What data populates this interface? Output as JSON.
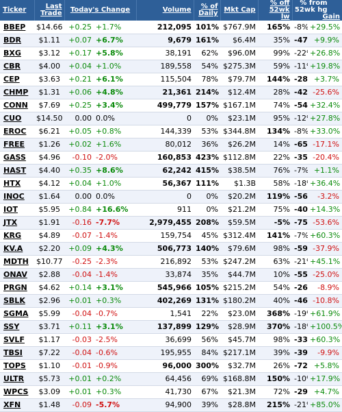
{
  "colors": {
    "positive": "#0a8a0a",
    "negative": "#d01010",
    "header_bg": "#2e5f98",
    "header_text": "#ffffff"
  },
  "headers": {
    "ticker": "Ticker",
    "last_trade": "Last Trade",
    "todays_change": "Today's Change",
    "volume": "Volume",
    "pct_daily": "% of Daily",
    "mkt_cap": "Mkt Cap",
    "pct_off_52wk_low": "% off 52wk lw",
    "pct_from_52wk_high": "% from 52wk hg",
    "gain": "Gain"
  },
  "rows": [
    {
      "ticker": "BBEP",
      "last": "$14.66",
      "chg": "+0.25",
      "pct": "+1.7%",
      "volume": "212,095",
      "daily": "101%",
      "cap": "$767.9M",
      "off": "165%",
      "from": "-8%",
      "gain": "+29.5%"
    },
    {
      "ticker": "BDR",
      "last": "$1.11",
      "chg": "+0.07",
      "pct": "+6.7%",
      "volume": "9,679",
      "daily": "161%",
      "cap": "$6.4M",
      "off": "35%",
      "from": "-47%",
      "gain": "+9.9%"
    },
    {
      "ticker": "BXG",
      "last": "$3.12",
      "chg": "+0.17",
      "pct": "+5.8%",
      "volume": "38,191",
      "daily": "62%",
      "cap": "$96.0M",
      "off": "99%",
      "from": "-22%",
      "gain": "+26.8%"
    },
    {
      "ticker": "CBR",
      "last": "$4.00",
      "chg": "+0.04",
      "pct": "+1.0%",
      "volume": "189,558",
      "daily": "54%",
      "cap": "$275.3M",
      "off": "59%",
      "from": "-11%",
      "gain": "+19.8%"
    },
    {
      "ticker": "CEP",
      "last": "$3.63",
      "chg": "+0.21",
      "pct": "+6.1%",
      "volume": "115,504",
      "daily": "78%",
      "cap": "$79.7M",
      "off": "144%",
      "from": "-28%",
      "gain": "+3.7%"
    },
    {
      "ticker": "CHMP",
      "last": "$1.31",
      "chg": "+0.06",
      "pct": "+4.8%",
      "volume": "21,361",
      "daily": "214%",
      "cap": "$12.4M",
      "off": "28%",
      "from": "-42%",
      "gain": "-25.6%"
    },
    {
      "ticker": "CONN",
      "last": "$7.69",
      "chg": "+0.25",
      "pct": "+3.4%",
      "volume": "499,779",
      "daily": "157%",
      "cap": "$167.1M",
      "off": "74%",
      "from": "-54%",
      "gain": "+32.4%"
    },
    {
      "ticker": "CUO",
      "last": "$14.50",
      "chg": "0.00",
      "pct": "0.0%",
      "volume": "0",
      "daily": "0%",
      "cap": "$23.1M",
      "off": "95%",
      "from": "-12%",
      "gain": "+27.8%"
    },
    {
      "ticker": "EROC",
      "last": "$6.21",
      "chg": "+0.05",
      "pct": "+0.8%",
      "volume": "144,339",
      "daily": "53%",
      "cap": "$344.8M",
      "off": "134%",
      "from": "-8%",
      "gain": "+33.0%"
    },
    {
      "ticker": "FREE",
      "last": "$1.26",
      "chg": "+0.02",
      "pct": "+1.6%",
      "volume": "80,012",
      "daily": "36%",
      "cap": "$26.2M",
      "off": "14%",
      "from": "-65%",
      "gain": "-17.1%"
    },
    {
      "ticker": "GASS",
      "last": "$4.96",
      "chg": "-0.10",
      "pct": "-2.0%",
      "volume": "160,853",
      "daily": "423%",
      "cap": "$112.8M",
      "off": "22%",
      "from": "-35%",
      "gain": "-20.4%"
    },
    {
      "ticker": "HAST",
      "last": "$4.40",
      "chg": "+0.35",
      "pct": "+8.6%",
      "volume": "62,242",
      "daily": "415%",
      "cap": "$38.5M",
      "off": "76%",
      "from": "-7%",
      "gain": "+1.1%"
    },
    {
      "ticker": "HTX",
      "last": "$4.12",
      "chg": "+0.04",
      "pct": "+1.0%",
      "volume": "56,367",
      "daily": "111%",
      "cap": "$1.3B",
      "off": "58%",
      "from": "-18%",
      "gain": "+36.4%"
    },
    {
      "ticker": "INOC",
      "last": "$1.64",
      "chg": "0.00",
      "pct": "0.0%",
      "volume": "0",
      "daily": "0%",
      "cap": "$20.2M",
      "off": "119%",
      "from": "-56%",
      "gain": "-3.2%"
    },
    {
      "ticker": "IOT",
      "last": "$5.95",
      "chg": "+0.84",
      "pct": "+16.6%",
      "volume": "911",
      "daily": "0%",
      "cap": "$21.2M",
      "off": "75%",
      "from": "-40%",
      "gain": "+14.3%"
    },
    {
      "ticker": "JTX",
      "last": "$1.91",
      "chg": "-0.16",
      "pct": "-7.7%",
      "volume": "2,979,455",
      "daily": "208%",
      "cap": "$59.5M",
      "off": "-5%",
      "from": "-75%",
      "gain": "-53.6%"
    },
    {
      "ticker": "KRG",
      "last": "$4.89",
      "chg": "-0.07",
      "pct": "-1.4%",
      "volume": "159,754",
      "daily": "45%",
      "cap": "$312.4M",
      "off": "141%",
      "from": "-7%",
      "gain": "+60.3%"
    },
    {
      "ticker": "KV.A",
      "last": "$2.20",
      "chg": "+0.09",
      "pct": "+4.3%",
      "volume": "506,773",
      "daily": "140%",
      "cap": "$79.6M",
      "off": "98%",
      "from": "-59%",
      "gain": "-37.9%"
    },
    {
      "ticker": "MDTH",
      "last": "$10.77",
      "chg": "-0.25",
      "pct": "-2.3%",
      "volume": "216,892",
      "daily": "53%",
      "cap": "$247.2M",
      "off": "63%",
      "from": "-21%",
      "gain": "+45.1%"
    },
    {
      "ticker": "ONAV",
      "last": "$2.88",
      "chg": "-0.04",
      "pct": "-1.4%",
      "volume": "33,874",
      "daily": "35%",
      "cap": "$44.7M",
      "off": "10%",
      "from": "-55%",
      "gain": "-25.0%"
    },
    {
      "ticker": "PRGN",
      "last": "$4.62",
      "chg": "+0.14",
      "pct": "+3.1%",
      "volume": "545,966",
      "daily": "105%",
      "cap": "$215.2M",
      "off": "54%",
      "from": "-26%",
      "gain": "-8.9%"
    },
    {
      "ticker": "SBLK",
      "last": "$2.96",
      "chg": "+0.01",
      "pct": "+0.3%",
      "volume": "402,269",
      "daily": "131%",
      "cap": "$180.2M",
      "off": "40%",
      "from": "-46%",
      "gain": "-10.8%"
    },
    {
      "ticker": "SGMA",
      "last": "$5.99",
      "chg": "-0.04",
      "pct": "-0.7%",
      "volume": "1,541",
      "daily": "22%",
      "cap": "$23.0M",
      "off": "368%",
      "from": "-19%",
      "gain": "+61.9%"
    },
    {
      "ticker": "SSY",
      "last": "$3.71",
      "chg": "+0.11",
      "pct": "+3.1%",
      "volume": "137,899",
      "daily": "129%",
      "cap": "$28.9M",
      "off": "370%",
      "from": "-18%",
      "gain": "+100.5%"
    },
    {
      "ticker": "SVLF",
      "last": "$1.17",
      "chg": "-0.03",
      "pct": "-2.5%",
      "volume": "36,699",
      "daily": "56%",
      "cap": "$45.7M",
      "off": "98%",
      "from": "-33%",
      "gain": "+60.3%"
    },
    {
      "ticker": "TBSI",
      "last": "$7.22",
      "chg": "-0.04",
      "pct": "-0.6%",
      "volume": "195,955",
      "daily": "84%",
      "cap": "$217.1M",
      "off": "39%",
      "from": "-39%",
      "gain": "-9.9%"
    },
    {
      "ticker": "TOPS",
      "last": "$1.10",
      "chg": "-0.01",
      "pct": "-0.9%",
      "volume": "96,000",
      "daily": "300%",
      "cap": "$32.7M",
      "off": "26%",
      "from": "-72%",
      "gain": "+5.8%"
    },
    {
      "ticker": "ULTR",
      "last": "$5.73",
      "chg": "+0.01",
      "pct": "+0.2%",
      "volume": "64,456",
      "daily": "69%",
      "cap": "$168.8M",
      "off": "150%",
      "from": "-10%",
      "gain": "+17.9%"
    },
    {
      "ticker": "WPCS",
      "last": "$3.09",
      "chg": "+0.01",
      "pct": "+0.3%",
      "volume": "41,730",
      "daily": "67%",
      "cap": "$21.3M",
      "off": "72%",
      "from": "-29%",
      "gain": "+4.7%"
    },
    {
      "ticker": "XFN",
      "last": "$1.48",
      "chg": "-0.09",
      "pct": "-5.7%",
      "volume": "94,900",
      "daily": "39%",
      "cap": "$28.8M",
      "off": "215%",
      "from": "-21%",
      "gain": "+85.0%"
    }
  ]
}
